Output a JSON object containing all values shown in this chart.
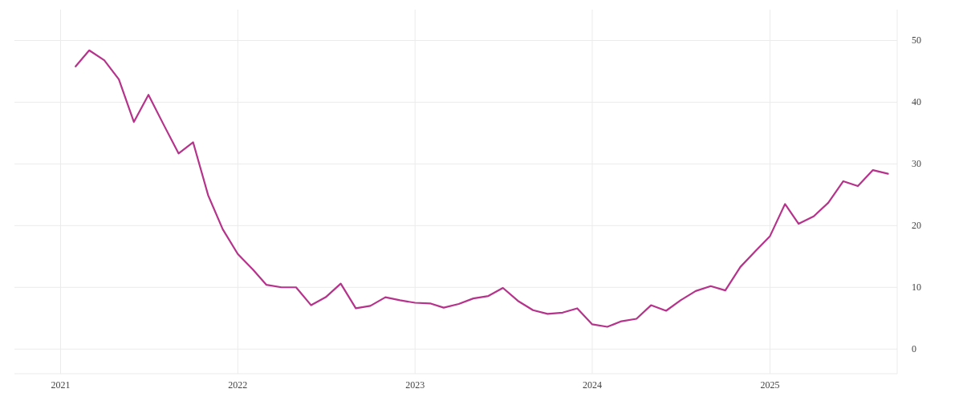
{
  "chart_data": {
    "type": "line",
    "x": [
      "2021-02",
      "2021-03",
      "2021-04",
      "2021-05",
      "2021-06",
      "2021-07",
      "2021-08",
      "2021-09",
      "2021-10",
      "2021-11",
      "2021-12",
      "2022-01",
      "2022-02",
      "2022-03",
      "2022-04",
      "2022-05",
      "2022-06",
      "2022-07",
      "2022-08",
      "2022-09",
      "2022-10",
      "2022-11",
      "2022-12",
      "2023-01",
      "2023-02",
      "2023-03",
      "2023-04",
      "2023-05",
      "2023-06",
      "2023-07",
      "2023-08",
      "2023-09",
      "2023-10",
      "2023-11",
      "2023-12",
      "2024-01",
      "2024-02",
      "2024-03",
      "2024-04",
      "2024-05",
      "2024-06",
      "2024-07",
      "2024-08",
      "2024-09",
      "2024-10",
      "2024-11",
      "2024-12",
      "2025-01",
      "2025-02",
      "2025-03",
      "2025-04",
      "2025-05",
      "2025-06",
      "2025-07",
      "2025-08",
      "2025-09"
    ],
    "series": [
      {
        "color": "#b5338a",
        "values": [
          45.8,
          48.4,
          46.8,
          43.7,
          36.8,
          41.2,
          36.4,
          31.7,
          33.5,
          24.9,
          19.4,
          15.4,
          12.9,
          10.4,
          10.0,
          10.0,
          7.1,
          8.4,
          10.6,
          6.6,
          7.0,
          8.4,
          7.9,
          7.5,
          7.4,
          6.7,
          7.3,
          8.2,
          8.6,
          9.9,
          7.8,
          6.3,
          5.7,
          5.9,
          6.6,
          4.0,
          3.6,
          4.5,
          4.9,
          7.1,
          6.2,
          7.9,
          9.4,
          10.2,
          9.5,
          13.3,
          15.8,
          18.3,
          23.5,
          20.3,
          21.5,
          23.7,
          27.2,
          26.4,
          29.0,
          28.4
        ]
      }
    ],
    "xlim": [
      "2020-09-28",
      "2025-09-20"
    ],
    "xticks": [
      "2021",
      "2022",
      "2023",
      "2024",
      "2025"
    ],
    "ylim": [
      -4,
      55
    ],
    "yticks": [
      0,
      10,
      20,
      30,
      40,
      50
    ],
    "grid": true,
    "marker": "none",
    "line_style": "solid"
  }
}
